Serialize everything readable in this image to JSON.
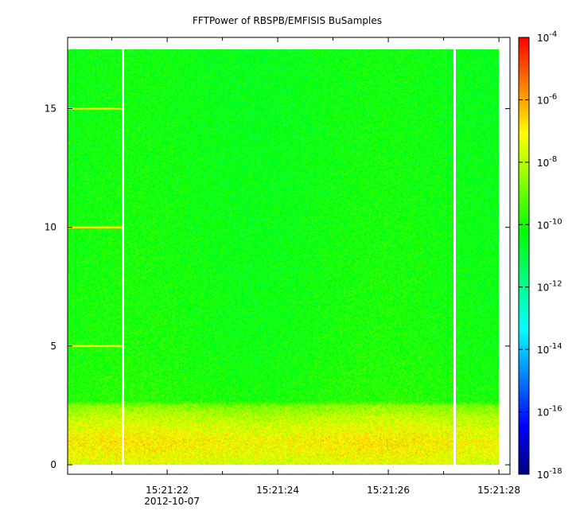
{
  "chart_data": {
    "type": "heatmap",
    "title": "FFTPower of RBSPB/EMFISIS  BuSamples",
    "xlabel": "",
    "ylabel": "",
    "x_ticks": [
      "15:21:22",
      "15:21:24",
      "15:21:26",
      "15:21:28"
    ],
    "x_tick_sublabel": "2012-10-07",
    "xlim_seconds": [
      20.2,
      28.2
    ],
    "x_data_start_seconds": 20.2,
    "x_data_end_seconds": 28.0,
    "x_tick_seconds": [
      22,
      24,
      26,
      28
    ],
    "x_minor_tick_seconds": [
      21,
      23,
      25,
      27
    ],
    "ylim": [
      -0.4,
      18.0
    ],
    "y_ticks": [
      0,
      5,
      10,
      15
    ],
    "y_data_range": [
      0,
      17.5
    ],
    "colorbar": {
      "scale": "log",
      "range": [
        1e-18,
        0.0001
      ],
      "tick_labels": [
        "10-4",
        "10-6",
        "10-8",
        "10-10",
        "10-12",
        "10-14",
        "10-16",
        "10-18"
      ],
      "tick_exponents": [
        -4,
        -6,
        -8,
        -10,
        -12,
        -14,
        -16,
        -18
      ],
      "colors": [
        "#000080",
        "#0000ff",
        "#0080ff",
        "#00ffff",
        "#00ff80",
        "#00ff00",
        "#80ff00",
        "#ffff00",
        "#ff8000",
        "#ff0000"
      ]
    },
    "data_gaps_seconds": [
      21.2,
      27.2
    ],
    "horizontal_lines_y": [
      5,
      10,
      15
    ],
    "horizontal_lines_x_range_seconds": [
      20.2,
      21.2
    ],
    "spectrum_profile": {
      "y": [
        0,
        0.5,
        1.0,
        1.5,
        2.0,
        2.5,
        2.7,
        5,
        10,
        15,
        17.5
      ],
      "log_power": [
        -7.6,
        -7.2,
        -7.0,
        -7.4,
        -7.9,
        -8.6,
        -9.9,
        -10.1,
        -10.2,
        -10.3,
        -10.3
      ]
    }
  }
}
